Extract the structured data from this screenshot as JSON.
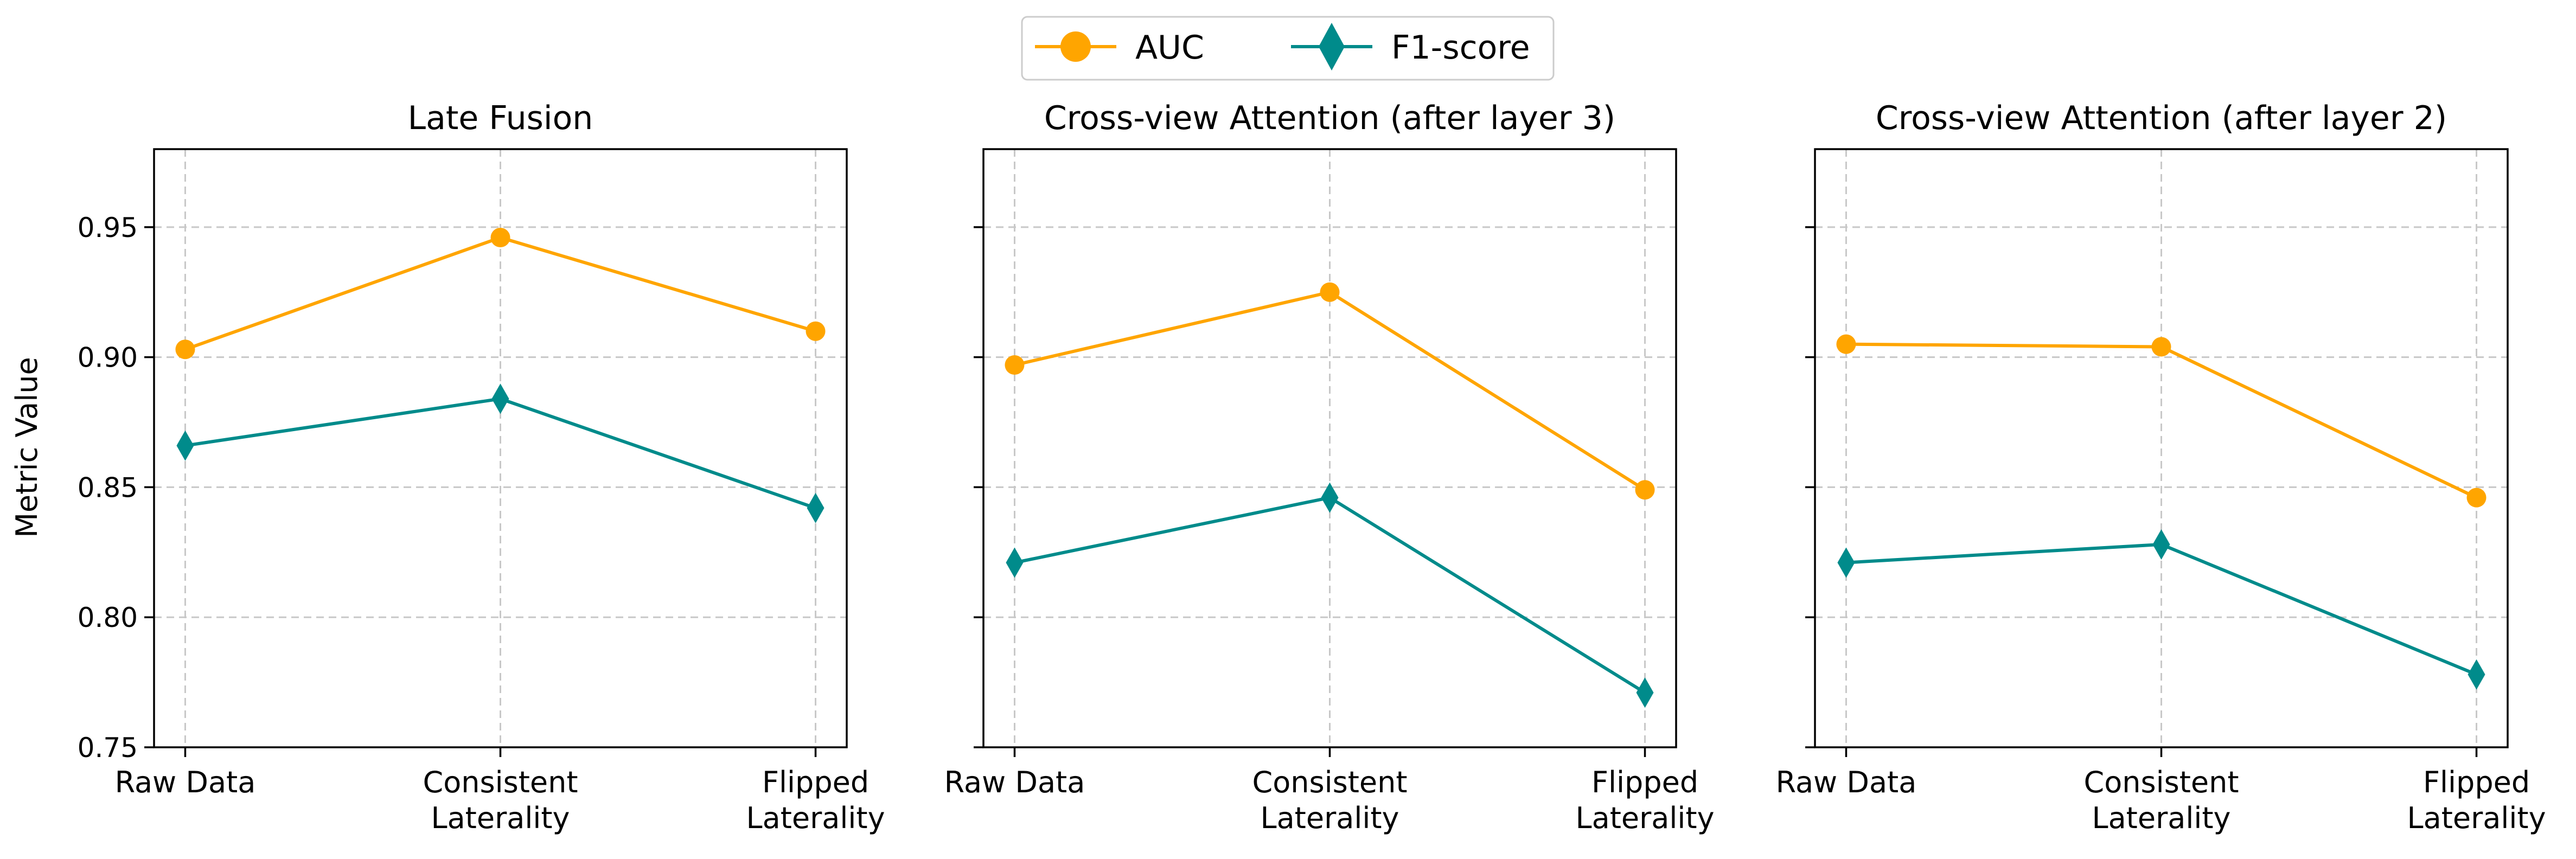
{
  "chart_data": {
    "type": "line",
    "ylabel": "Metric Value",
    "ylim": [
      0.75,
      0.98
    ],
    "yticks": [
      0.75,
      0.8,
      0.85,
      0.9,
      0.95
    ],
    "ytick_labels": [
      "0.75",
      "0.80",
      "0.85",
      "0.90",
      "0.95"
    ],
    "grid": true,
    "legend_position": "top-center",
    "categories": [
      [
        "Raw Data"
      ],
      [
        "Consistent",
        "Laterality"
      ],
      [
        "Flipped",
        "Laterality"
      ]
    ],
    "series_styles": [
      {
        "name": "AUC",
        "color": "#FFA500",
        "marker": "circle"
      },
      {
        "name": "F1-score",
        "color": "#008B8B",
        "marker": "diamond"
      }
    ],
    "panels": [
      {
        "title": "Late Fusion",
        "series": [
          {
            "name": "AUC",
            "values": [
              0.903,
              0.946,
              0.91
            ]
          },
          {
            "name": "F1-score",
            "values": [
              0.866,
              0.884,
              0.842
            ]
          }
        ]
      },
      {
        "title": "Cross-view Attention (after layer 3)",
        "series": [
          {
            "name": "AUC",
            "values": [
              0.897,
              0.925,
              0.849
            ]
          },
          {
            "name": "F1-score",
            "values": [
              0.821,
              0.846,
              0.771
            ]
          }
        ]
      },
      {
        "title": "Cross-view Attention (after layer 2)",
        "series": [
          {
            "name": "AUC",
            "values": [
              0.905,
              0.904,
              0.846
            ]
          },
          {
            "name": "F1-score",
            "values": [
              0.821,
              0.828,
              0.778
            ]
          }
        ]
      }
    ]
  }
}
